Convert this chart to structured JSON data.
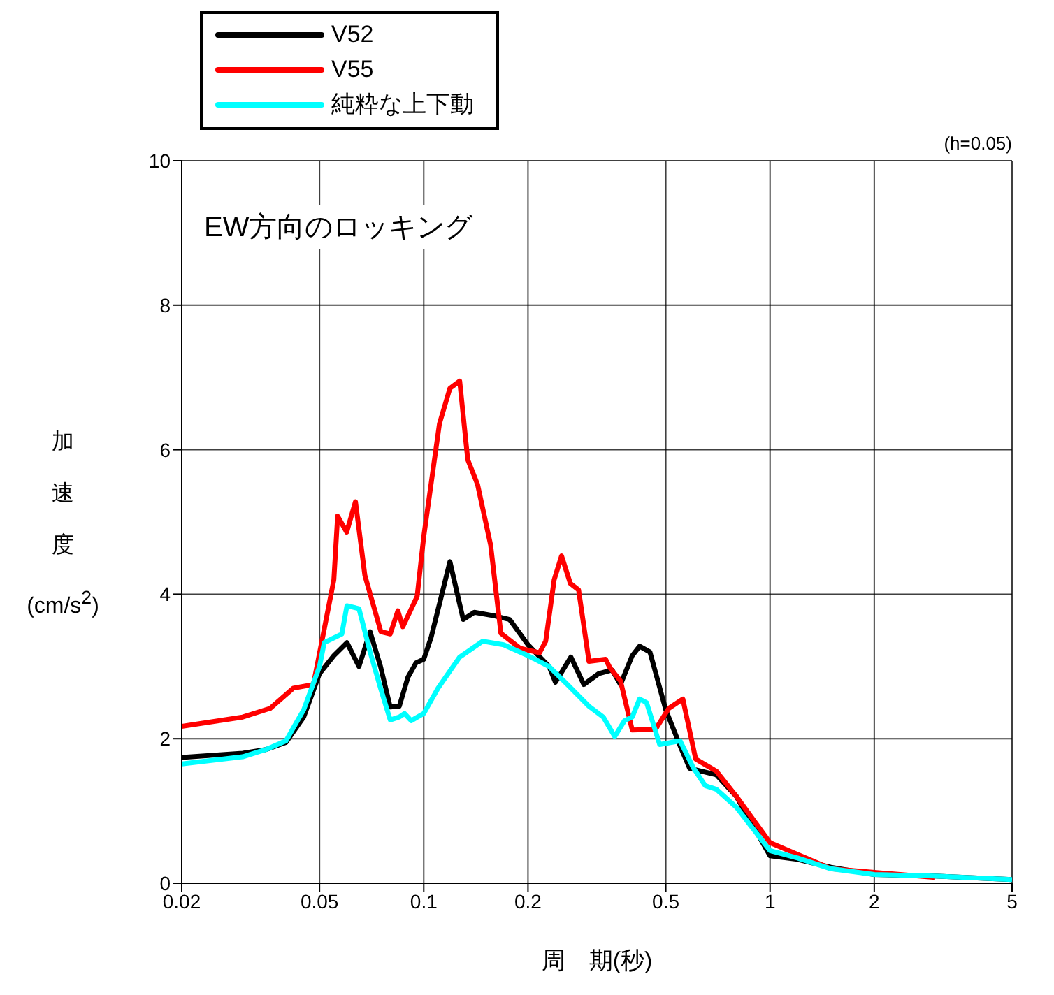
{
  "chart_data": {
    "type": "line",
    "title": "EW方向のロッキング",
    "xlabel": "周　期(秒)",
    "ylabel": "加速度(cm/s$^{2}$)",
    "annotations": [
      "(h=0.05)"
    ],
    "log": "x",
    "xlim": [
      0.02,
      5
    ],
    "xticks": [
      0.02,
      0.05,
      0.1,
      0.2,
      0.5,
      1,
      2,
      5
    ],
    "ylim": [
      0,
      10
    ],
    "yticks": [
      0,
      2,
      4,
      6,
      8,
      10
    ],
    "grid": true,
    "legend": "top left",
    "marker": "none",
    "line_style": "solid",
    "series": [
      {
        "name": "V52",
        "color": "#000000",
        "x": [
          0.02,
          0.03,
          0.035,
          0.04,
          0.045,
          0.05,
          0.055,
          0.06,
          0.065,
          0.07,
          0.075,
          0.08,
          0.085,
          0.09,
          0.095,
          0.1,
          0.105,
          0.119,
          0.13,
          0.14,
          0.16,
          0.177,
          0.2,
          0.23,
          0.24,
          0.266,
          0.29,
          0.32,
          0.35,
          0.37,
          0.4,
          0.42,
          0.45,
          0.5,
          0.55,
          0.586,
          0.7,
          0.8,
          1,
          1.2,
          1.5,
          2,
          3,
          5
        ],
        "values": [
          1.74,
          1.8,
          1.85,
          1.95,
          2.3,
          2.9,
          3.15,
          3.33,
          3.0,
          3.48,
          3.0,
          2.44,
          2.45,
          2.85,
          3.05,
          3.1,
          3.4,
          4.45,
          3.65,
          3.75,
          3.7,
          3.65,
          3.3,
          3.0,
          2.78,
          3.13,
          2.75,
          2.9,
          2.95,
          2.75,
          3.15,
          3.28,
          3.2,
          2.4,
          1.9,
          1.59,
          1.5,
          1.2,
          0.38,
          0.33,
          0.22,
          0.12,
          0.1,
          0.05
        ]
      },
      {
        "name": "V55",
        "color": "#ff0000",
        "x": [
          0.02,
          0.03,
          0.036,
          0.042,
          0.048,
          0.052,
          0.055,
          0.0564,
          0.0599,
          0.0635,
          0.0676,
          0.0752,
          0.08,
          0.0842,
          0.087,
          0.0957,
          0.1,
          0.111,
          0.119,
          0.127,
          0.134,
          0.143,
          0.156,
          0.167,
          0.19,
          0.216,
          0.225,
          0.238,
          0.25,
          0.265,
          0.28,
          0.3,
          0.335,
          0.345,
          0.37,
          0.4,
          0.467,
          0.51,
          0.56,
          0.61,
          0.7,
          0.8,
          1,
          1.2,
          1.5,
          3
        ],
        "values": [
          2.17,
          2.3,
          2.42,
          2.7,
          2.75,
          3.6,
          4.2,
          5.08,
          4.86,
          5.28,
          4.26,
          3.48,
          3.45,
          3.77,
          3.55,
          3.97,
          4.8,
          6.36,
          6.85,
          6.95,
          5.86,
          5.52,
          4.68,
          3.46,
          3.25,
          3.19,
          3.35,
          4.2,
          4.53,
          4.15,
          4.06,
          3.07,
          3.1,
          2.98,
          2.8,
          2.12,
          2.13,
          2.42,
          2.55,
          1.72,
          1.55,
          1.2,
          0.56,
          0.4,
          0.2,
          0.08
        ]
      },
      {
        "name": "純粋な上下動",
        "color": "#00ffff",
        "x": [
          0.02,
          0.03,
          0.035,
          0.04,
          0.045,
          0.05,
          0.0516,
          0.058,
          0.06,
          0.065,
          0.07,
          0.075,
          0.08,
          0.085,
          0.088,
          0.092,
          0.1,
          0.11,
          0.127,
          0.148,
          0.17,
          0.2,
          0.23,
          0.26,
          0.3,
          0.33,
          0.356,
          0.38,
          0.4,
          0.42,
          0.44,
          0.48,
          0.55,
          0.6,
          0.65,
          0.7,
          0.8,
          1,
          1.2,
          1.5,
          2,
          3,
          5
        ],
        "values": [
          1.65,
          1.75,
          1.85,
          1.97,
          2.4,
          3.0,
          3.33,
          3.45,
          3.84,
          3.8,
          3.2,
          2.7,
          2.26,
          2.3,
          2.35,
          2.25,
          2.35,
          2.7,
          3.13,
          3.35,
          3.3,
          3.15,
          3.0,
          2.75,
          2.45,
          2.3,
          2.03,
          2.25,
          2.3,
          2.55,
          2.5,
          1.92,
          1.97,
          1.6,
          1.35,
          1.3,
          1.05,
          0.45,
          0.35,
          0.2,
          0.12,
          0.1,
          0.05
        ]
      }
    ]
  }
}
